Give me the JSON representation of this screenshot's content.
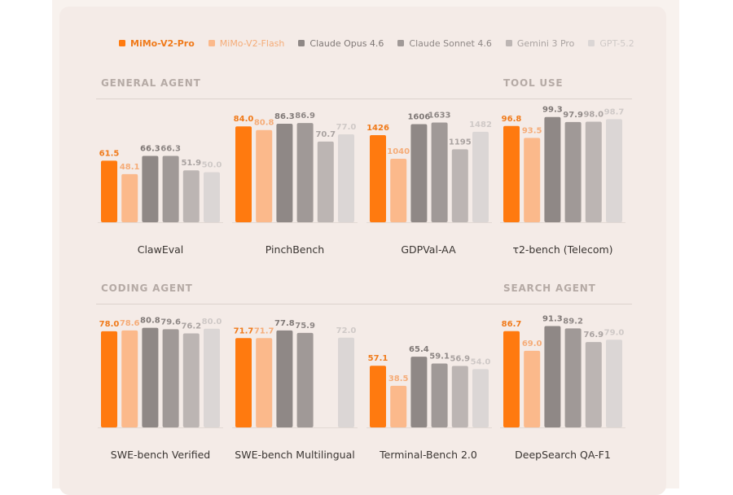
{
  "legend": [
    {
      "name": "MiMo-V2-Pro",
      "color": "#ff7a0f",
      "label_color": "#f07a1a"
    },
    {
      "name": "MiMo-V2-Flash",
      "color": "#fbb98b",
      "label_color": "#f5ac78"
    },
    {
      "name": "Claude Opus 4.6",
      "color": "#8f8886",
      "label_color": "#7f7876"
    },
    {
      "name": "Claude Sonnet 4.6",
      "color": "#a09997",
      "label_color": "#8e8785"
    },
    {
      "name": "Gemini 3 Pro",
      "color": "#bcb5b3",
      "label_color": "#aaa3a1"
    },
    {
      "name": "GPT-5.2",
      "color": "#dbd6d5",
      "label_color": "#cfc9c7"
    }
  ],
  "sections": {
    "general_agent": "GENERAL AGENT",
    "tool_use": "TOOL USE",
    "coding_agent": "CODING AGENT",
    "search_agent": "SEARCH AGENT"
  },
  "chart_data": [
    {
      "type": "bar",
      "title": "ClawEval",
      "section": "GENERAL AGENT",
      "series": [
        "MiMo-V2-Pro",
        "MiMo-V2-Flash",
        "Claude Opus 4.6",
        "Claude Sonnet 4.6",
        "Gemini 3 Pro",
        "GPT-5.2"
      ],
      "values": [
        61.5,
        48.1,
        66.3,
        66.3,
        51.9,
        50.0
      ],
      "labels": [
        "61.5",
        "48.1",
        "66.3",
        "66.3",
        "51.9",
        "50.0"
      ],
      "ylim": [
        0,
        122
      ]
    },
    {
      "type": "bar",
      "title": "PinchBench",
      "section": "GENERAL AGENT",
      "series": [
        "MiMo-V2-Pro",
        "MiMo-V2-Flash",
        "Claude Opus 4.6",
        "Claude Sonnet 4.6",
        "Gemini 3 Pro",
        "GPT-5.2"
      ],
      "values": [
        84.0,
        80.8,
        86.3,
        86.9,
        70.7,
        77.0
      ],
      "labels": [
        "84.0",
        "80.8",
        "86.3",
        "86.9",
        "70.7",
        "77.0"
      ],
      "ylim": [
        0,
        107
      ]
    },
    {
      "type": "bar",
      "title": "GDPVal-AA",
      "section": "GENERAL AGENT",
      "series": [
        "MiMo-V2-Pro",
        "MiMo-V2-Flash",
        "Claude Opus 4.6",
        "Claude Sonnet 4.6",
        "Gemini 3 Pro",
        "GPT-5.2"
      ],
      "values": [
        1426,
        1040,
        1606,
        1633,
        1195,
        1482
      ],
      "labels": [
        "1426",
        "1040",
        "1606",
        "1633",
        "1195",
        "1482"
      ],
      "ylim": [
        0,
        2000
      ]
    },
    {
      "type": "bar",
      "title": "τ2-bench (Telecom)",
      "section": "TOOL USE",
      "series": [
        "MiMo-V2-Pro",
        "MiMo-V2-Flash",
        "Claude Opus 4.6",
        "Claude Sonnet 4.6",
        "Gemini 3 Pro",
        "GPT-5.2"
      ],
      "values": [
        96.8,
        93.5,
        99.3,
        97.9,
        98.0,
        98.7
      ],
      "labels": [
        "96.8",
        "93.5",
        "99.3",
        "97.9",
        "98.0",
        "98.7"
      ],
      "ylim": [
        70,
        104
      ]
    },
    {
      "type": "bar",
      "title": "SWE-bench Verified",
      "section": "CODING AGENT",
      "series": [
        "MiMo-V2-Pro",
        "MiMo-V2-Flash",
        "Claude Opus 4.6",
        "Claude Sonnet 4.6",
        "Gemini 3 Pro",
        "GPT-5.2"
      ],
      "values": [
        78.0,
        78.6,
        80.8,
        79.6,
        76.2,
        80.0
      ],
      "labels": [
        "78.0",
        "78.6",
        "80.8",
        "79.6",
        "76.2",
        "80.0"
      ],
      "ylim": [
        0,
        99
      ]
    },
    {
      "type": "bar",
      "title": "SWE-bench Multilingual",
      "section": "CODING AGENT",
      "series": [
        "MiMo-V2-Pro",
        "MiMo-V2-Flash",
        "Claude Opus 4.6",
        "Claude Sonnet 4.6",
        "Gemini 3 Pro",
        "GPT-5.2"
      ],
      "values": [
        71.7,
        71.7,
        77.8,
        75.9,
        null,
        72.0
      ],
      "labels": [
        "71.7",
        "71.7",
        "77.8",
        "75.9",
        "",
        "72.0"
      ],
      "ylim": [
        0,
        98
      ]
    },
    {
      "type": "bar",
      "title": "Terminal-Bench 2.0",
      "section": "CODING AGENT",
      "series": [
        "MiMo-V2-Pro",
        "MiMo-V2-Flash",
        "Claude Opus 4.6",
        "Claude Sonnet 4.6",
        "Gemini 3 Pro",
        "GPT-5.2"
      ],
      "values": [
        57.1,
        38.5,
        65.4,
        59.1,
        56.9,
        54.0
      ],
      "labels": [
        "57.1",
        "38.5",
        "65.4",
        "59.1",
        "56.9",
        "54.0"
      ],
      "ylim": [
        0,
        113
      ]
    },
    {
      "type": "bar",
      "title": "DeepSearch QA-F1",
      "section": "SEARCH AGENT",
      "series": [
        "MiMo-V2-Pro",
        "MiMo-V2-Flash",
        "Claude Opus 4.6",
        "Claude Sonnet 4.6",
        "Gemini 3 Pro",
        "GPT-5.2"
      ],
      "values": [
        86.7,
        69.0,
        91.3,
        89.2,
        76.9,
        79.0
      ],
      "labels": [
        "86.7",
        "69.0",
        "91.3",
        "89.2",
        "76.9",
        "79.0"
      ],
      "ylim": [
        0,
        110
      ]
    }
  ]
}
